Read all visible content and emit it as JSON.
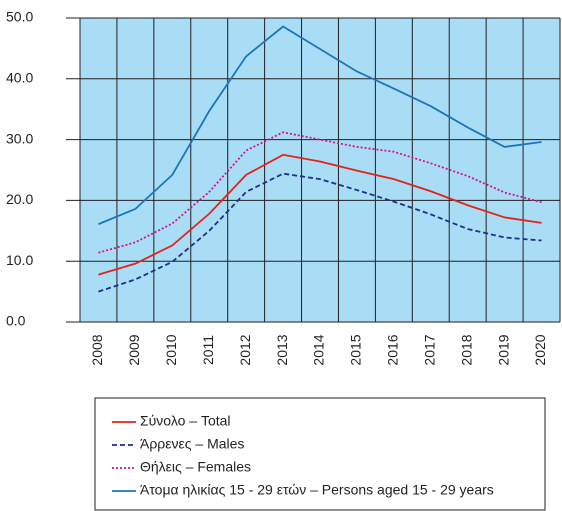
{
  "chart_data": {
    "type": "line",
    "categories": [
      "2008",
      "2009",
      "2010",
      "2011",
      "2012",
      "2013",
      "2014",
      "2015",
      "2016",
      "2017",
      "2018",
      "2019",
      "2020"
    ],
    "series": [
      {
        "name": "Σύνολο – Total",
        "color": "#e2231a",
        "style": "solid",
        "values": [
          7.8,
          9.6,
          12.6,
          17.8,
          24.2,
          27.5,
          26.4,
          24.9,
          23.5,
          21.5,
          19.2,
          17.2,
          16.3
        ]
      },
      {
        "name": "Άρρενες – Males",
        "color": "#1f2f8a",
        "style": "dashed",
        "values": [
          5.0,
          7.0,
          9.9,
          15.0,
          21.4,
          24.4,
          23.5,
          21.7,
          19.8,
          17.7,
          15.3,
          13.9,
          13.4
        ]
      },
      {
        "name": "Θήλεις – Females",
        "color": "#d4148c",
        "style": "dotted",
        "values": [
          11.4,
          13.1,
          16.2,
          21.4,
          28.2,
          31.2,
          30.0,
          28.8,
          28.0,
          26.1,
          24.0,
          21.3,
          19.7
        ]
      },
      {
        "name": "Άτομα ηλικίας 15 - 29 ετών – Persons aged 15 - 29 years",
        "color": "#1b75bb",
        "style": "solid",
        "values": [
          16.1,
          18.6,
          24.2,
          34.7,
          43.7,
          48.6,
          44.9,
          41.2,
          38.4,
          35.5,
          32.0,
          28.8,
          29.6
        ]
      }
    ],
    "ylim": [
      0,
      50
    ],
    "yticks": [
      {
        "value": 0,
        "label": "0.0"
      },
      {
        "value": 10,
        "label": "10.0"
      },
      {
        "value": 20,
        "label": "20.0"
      },
      {
        "value": 30,
        "label": "30.0"
      },
      {
        "value": 40,
        "label": "40.0"
      },
      {
        "value": 50,
        "label": "50.0"
      }
    ],
    "grid": true,
    "background": "#a9dcf5"
  }
}
